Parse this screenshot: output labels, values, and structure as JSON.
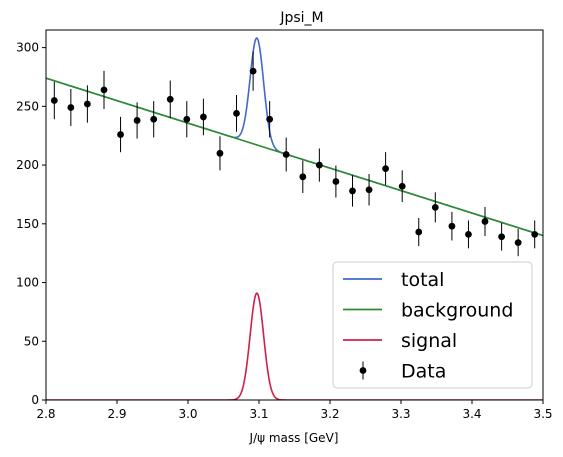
{
  "chart_data": {
    "type": "line",
    "title": "Jpsi_M",
    "xlabel": "J/ψ mass [GeV]",
    "ylabel": "",
    "xlim": [
      2.8,
      3.5
    ],
    "ylim": [
      0,
      315
    ],
    "xticks": [
      2.8,
      2.9,
      3.0,
      3.1,
      3.2,
      3.3,
      3.4,
      3.5
    ],
    "xtick_labels": [
      "2.8",
      "2.9",
      "3.0",
      "3.1",
      "3.2",
      "3.3",
      "3.4",
      "3.5"
    ],
    "yticks": [
      0,
      50,
      100,
      150,
      200,
      250,
      300
    ],
    "ytick_labels": [
      "0",
      "50",
      "100",
      "150",
      "200",
      "250",
      "300"
    ],
    "grid": false,
    "legend_position": "bottom-right",
    "data_points": {
      "name": "Data",
      "color": "#000000",
      "x": [
        2.8117,
        2.835,
        2.8583,
        2.8817,
        2.905,
        2.9283,
        2.9517,
        2.975,
        2.9983,
        3.0217,
        3.045,
        3.0683,
        3.0917,
        3.115,
        3.1383,
        3.1617,
        3.185,
        3.2083,
        3.2317,
        3.255,
        3.2783,
        3.3017,
        3.325,
        3.3483,
        3.3717,
        3.395,
        3.4183,
        3.4417,
        3.465,
        3.4883
      ],
      "y": [
        255,
        249,
        252,
        264,
        226,
        238,
        239,
        256,
        239,
        241,
        210,
        244,
        280,
        239,
        209,
        190,
        200,
        186,
        178,
        179,
        197,
        182,
        143,
        164,
        148,
        141,
        152,
        139,
        134,
        141
      ]
    },
    "series": [
      {
        "name": "total",
        "color": "#4169cc",
        "type": "line",
        "background_at_2_8": 274,
        "background_at_3_5": 140,
        "peak_mean": 3.097,
        "peak_sigma": 0.0095,
        "peak_amplitude": 91
      },
      {
        "name": "background",
        "color": "#2e8b2e",
        "type": "line",
        "y_at_2_8": 274,
        "y_at_3_5": 140
      },
      {
        "name": "signal",
        "color": "#d11f49",
        "type": "line",
        "mean": 3.097,
        "sigma": 0.0095,
        "amplitude": 91
      }
    ]
  }
}
